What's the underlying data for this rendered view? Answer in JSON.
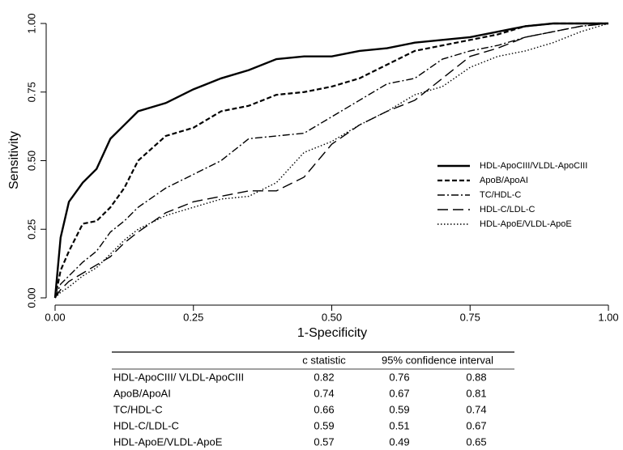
{
  "chart_data": {
    "type": "line",
    "xlabel": "1-Specificity",
    "ylabel": "Sensitivity",
    "x": [
      0,
      0.01,
      0.025,
      0.05,
      0.075,
      0.1,
      0.125,
      0.15,
      0.2,
      0.25,
      0.3,
      0.35,
      0.4,
      0.45,
      0.5,
      0.55,
      0.6,
      0.65,
      0.7,
      0.75,
      0.8,
      0.85,
      0.9,
      0.95,
      1
    ],
    "series": [
      {
        "name": "HDL-ApoCIII/VLDL-ApoCIII",
        "color": "#000000",
        "dash": "solid",
        "width": 2.4,
        "values": [
          0,
          0.22,
          0.35,
          0.42,
          0.47,
          0.58,
          0.63,
          0.68,
          0.71,
          0.76,
          0.8,
          0.83,
          0.87,
          0.88,
          0.88,
          0.9,
          0.91,
          0.93,
          0.94,
          0.95,
          0.97,
          0.99,
          1,
          1,
          1
        ]
      },
      {
        "name": "ApoB/ApoAI",
        "color": "#000000",
        "dash": "dashed",
        "width": 2.2,
        "values": [
          0,
          0.1,
          0.17,
          0.27,
          0.28,
          0.33,
          0.4,
          0.5,
          0.59,
          0.62,
          0.68,
          0.7,
          0.74,
          0.75,
          0.77,
          0.8,
          0.85,
          0.9,
          0.92,
          0.94,
          0.96,
          0.99,
          1,
          1,
          1
        ]
      },
      {
        "name": "TC/HDL-C",
        "color": "#000000",
        "dash": "dashdot",
        "width": 1.4,
        "values": [
          0,
          0.05,
          0.08,
          0.13,
          0.17,
          0.24,
          0.28,
          0.33,
          0.4,
          0.45,
          0.5,
          0.58,
          0.59,
          0.6,
          0.66,
          0.72,
          0.78,
          0.8,
          0.87,
          0.9,
          0.92,
          0.95,
          0.97,
          0.99,
          1
        ]
      },
      {
        "name": "HDL-C/LDL-C",
        "color": "#000000",
        "dash": "longdash",
        "width": 1.4,
        "values": [
          0,
          0.03,
          0.06,
          0.09,
          0.12,
          0.15,
          0.2,
          0.24,
          0.31,
          0.35,
          0.37,
          0.39,
          0.39,
          0.44,
          0.56,
          0.63,
          0.68,
          0.72,
          0.8,
          0.88,
          0.91,
          0.95,
          0.97,
          0.99,
          1
        ]
      },
      {
        "name": "HDL-ApoE/VLDL-ApoE",
        "color": "#000000",
        "dash": "dotted",
        "width": 1.4,
        "values": [
          0,
          0.02,
          0.04,
          0.08,
          0.11,
          0.16,
          0.21,
          0.25,
          0.3,
          0.33,
          0.36,
          0.37,
          0.42,
          0.53,
          0.57,
          0.63,
          0.68,
          0.74,
          0.77,
          0.84,
          0.88,
          0.9,
          0.93,
          0.97,
          1
        ]
      }
    ],
    "xlim": [
      0,
      1
    ],
    "ylim": [
      0,
      1
    ],
    "xticks": [
      {
        "value": 0,
        "label": "0.00"
      },
      {
        "value": 0.25,
        "label": "0.25"
      },
      {
        "value": 0.5,
        "label": "0.50"
      },
      {
        "value": 0.75,
        "label": "0.75"
      },
      {
        "value": 1,
        "label": "1.00"
      }
    ],
    "yticks": [
      {
        "value": 0,
        "label": "0.00"
      },
      {
        "value": 0.25,
        "label": "0.25"
      },
      {
        "value": 0.5,
        "label": "0.50"
      },
      {
        "value": 0.75,
        "label": "0.75"
      },
      {
        "value": 1,
        "label": "1.00"
      }
    ],
    "grid": false,
    "legend": "right"
  },
  "table": {
    "columns": [
      "c statistic",
      "95% confidence interval"
    ],
    "rows": [
      {
        "label": "HDL-ApoCIII/ VLDL-ApoCIII",
        "c": 0.82,
        "lo": 0.76,
        "hi": 0.88
      },
      {
        "label": "ApoB/ApoAI",
        "c": 0.74,
        "lo": 0.67,
        "hi": 0.81
      },
      {
        "label": "TC/HDL-C",
        "c": 0.66,
        "lo": 0.59,
        "hi": 0.74
      },
      {
        "label": "HDL-C/LDL-C",
        "c": 0.59,
        "lo": 0.51,
        "hi": 0.67
      },
      {
        "label": "HDL-ApoE/VLDL-ApoE",
        "c": 0.57,
        "lo": 0.49,
        "hi": 0.65
      }
    ]
  }
}
